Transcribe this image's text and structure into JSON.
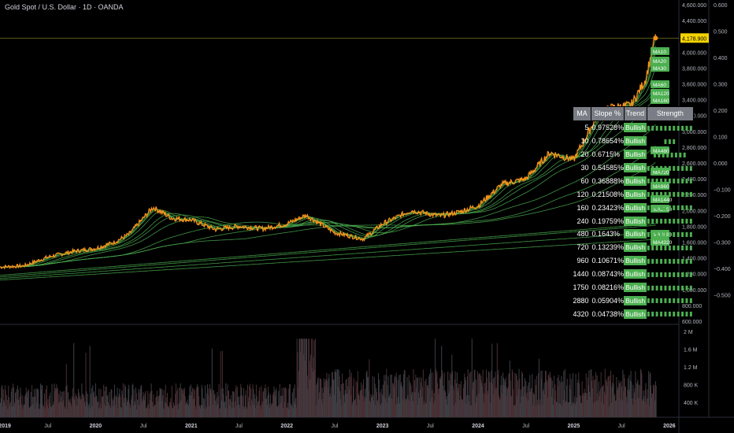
{
  "header": {
    "title": "Gold Spot / U.S. Dollar · 1D · OANDA"
  },
  "price_label": "4,178.900",
  "colors": {
    "price": "#f7931a",
    "ma": "#4caf50",
    "ma_red": "#c2185b",
    "volume": "#3a3e46",
    "label_bg": "#f5d300"
  },
  "chart_data": {
    "type": "line",
    "x_ticks": [
      "2019",
      "Jul",
      "2020",
      "Jul",
      "2021",
      "Jul",
      "2022",
      "Jul",
      "2023",
      "Jul",
      "2024",
      "Jul",
      "2025",
      "Jul",
      "2026"
    ],
    "y_left_ticks": [
      "4,600.000",
      "4,400.000",
      "4,200.000",
      "4,000.000",
      "3,800.000",
      "3,600.000",
      "3,400.000",
      "3,200.000",
      "3,000.000",
      "2,800.000",
      "2,600.000",
      "2,400.000",
      "2,200.000",
      "2,000.000",
      "1,800.000",
      "1,600.000",
      "1,400.000",
      "1,200.000",
      "1,000.000",
      "800.000",
      "600.000"
    ],
    "y_left_values": [
      4600,
      4400,
      4200,
      4000,
      3800,
      3600,
      3400,
      3200,
      3000,
      2800,
      2600,
      2400,
      2200,
      2000,
      1800,
      1600,
      1400,
      1200,
      1000,
      800,
      600
    ],
    "y_right_ticks": [
      "0.600",
      "0.500",
      "0.400",
      "0.300",
      "0.200",
      "0.100",
      "0.000",
      "−0.100",
      "−0.200",
      "−0.300",
      "−0.400",
      "−0.500"
    ],
    "volume_ticks": [
      "2 M",
      "1.6 M",
      "1.2 M",
      "800 K",
      "400 K"
    ],
    "price": {
      "x": [
        2019.0,
        2019.25,
        2019.5,
        2019.75,
        2020.0,
        2020.2,
        2020.35,
        2020.6,
        2020.8,
        2021.0,
        2021.25,
        2021.5,
        2021.75,
        2022.0,
        2022.2,
        2022.5,
        2022.8,
        2023.0,
        2023.3,
        2023.6,
        2023.8,
        2024.0,
        2024.25,
        2024.5,
        2024.75,
        2025.0,
        2025.25,
        2025.4,
        2025.6,
        2025.75,
        2025.85
      ],
      "y": [
        1285,
        1300,
        1410,
        1480,
        1520,
        1600,
        1700,
        2040,
        1900,
        1880,
        1760,
        1800,
        1770,
        1830,
        1940,
        1720,
        1640,
        1830,
        2000,
        1930,
        1980,
        2060,
        2330,
        2400,
        2730,
        2640,
        3200,
        3300,
        3330,
        3650,
        4178
      ]
    },
    "moving_averages": [
      "MA10",
      "MA20",
      "MA30",
      "MA60",
      "MA120",
      "MA160",
      "MA240",
      "MA480",
      "MA720",
      "MA960",
      "MA1440",
      "MA1750",
      "MA2880",
      "MA4320"
    ],
    "table": {
      "headers": [
        "MA",
        "Slope %",
        "Trend",
        "Strength"
      ],
      "rows": [
        {
          "ma": "5",
          "slope": "0.97528%",
          "trend": "Bullish",
          "strength": "▮▮▮▮▮▮▮▮▮▮▮"
        },
        {
          "ma": "10",
          "slope": "0.78654%",
          "trend": "Bullish",
          "strength": "▮▮▮"
        },
        {
          "ma": "20",
          "slope": "0.6715%",
          "trend": "Bullish",
          "strength": "▮▮▮▮▮▮▮▮"
        },
        {
          "ma": "30",
          "slope": "0.54585%",
          "trend": "Bullish",
          "strength": "▮▮▮▮▮▮▮▮▮▮▮"
        },
        {
          "ma": "60",
          "slope": "0.36888%",
          "trend": "Bullish",
          "strength": "▮▮▮▮▮▮▮▮▮▮▮"
        },
        {
          "ma": "120",
          "slope": "0.21508%",
          "trend": "Bullish",
          "strength": "▮▮▮▮▮▮▮▮▮▮▮"
        },
        {
          "ma": "160",
          "slope": "0.23423%",
          "trend": "Bullish",
          "strength": "▮▮▮▮▮▮▮▮▮▮▮"
        },
        {
          "ma": "240",
          "slope": "0.19759%",
          "trend": "Bullish",
          "strength": "▮▮▮▮▮▮▮▮▮▮▮"
        },
        {
          "ma": "480",
          "slope": "0.1643%",
          "trend": "Bullish",
          "strength": "▮▮▮▮▮▮▮▮▮▮▮"
        },
        {
          "ma": "720",
          "slope": "0.13239%",
          "trend": "Bullish",
          "strength": "▮▮▮▮▮▮▮▮▮▮▮"
        },
        {
          "ma": "960",
          "slope": "0.10671%",
          "trend": "Bullish",
          "strength": "▮▮▮▮▮▮▮▮▮▮▮"
        },
        {
          "ma": "1440",
          "slope": "0.08743%",
          "trend": "Bullish",
          "strength": "▮▮▮▮▮▮▮▮▮▮▮"
        },
        {
          "ma": "1750",
          "slope": "0.08216%",
          "trend": "Bullish",
          "strength": "▮▮▮▮▮▮▮▮▮▮▮"
        },
        {
          "ma": "2880",
          "slope": "0.05904%",
          "trend": "Bullish",
          "strength": "▮▮▮▮▮▮▮▮▮▮▮"
        },
        {
          "ma": "4320",
          "slope": "0.04738%",
          "trend": "Bullish",
          "strength": "▮▮▮▮▮▮▮▮▮▮▮"
        }
      ]
    }
  }
}
